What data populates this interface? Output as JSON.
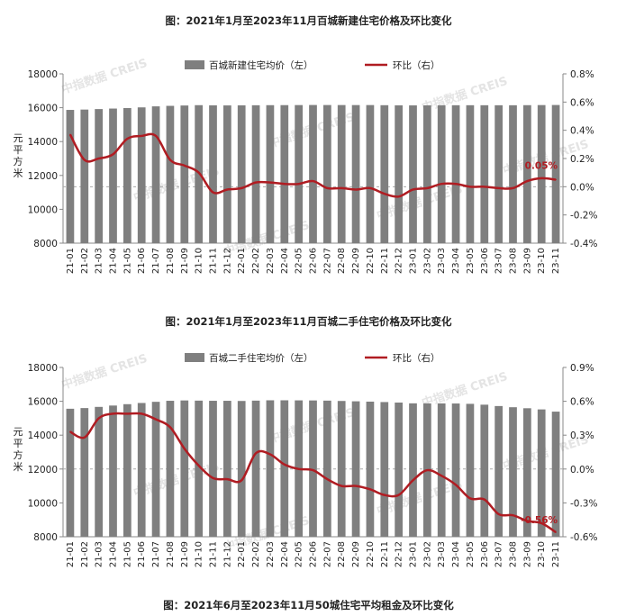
{
  "captions": [
    "图：2021年1月至2023年11月百城新建住宅价格及环比变化",
    "图：2021年1月至2023年11月百城二手住宅价格及环比变化",
    "图：2021年6月至2023年11月50城住宅平均租金及环比变化"
  ],
  "watermark": "中指数据 CREIS",
  "chart_data": [
    {
      "type": "bar",
      "title": "图：2021年1月至2023年11月百城新建住宅价格及环比变化",
      "categories": [
        "21-01",
        "21-02",
        "21-03",
        "21-04",
        "21-05",
        "21-06",
        "21-07",
        "21-08",
        "21-09",
        "21-10",
        "21-11",
        "21-12",
        "22-01",
        "22-02",
        "22-03",
        "22-04",
        "22-05",
        "22-06",
        "22-07",
        "22-08",
        "22-09",
        "22-10",
        "22-11",
        "22-12",
        "23-01",
        "23-02",
        "23-03",
        "23-04",
        "23-05",
        "23-06",
        "23-07",
        "23-08",
        "23-09",
        "23-10",
        "23-11"
      ],
      "ylabel": "元/平方米",
      "ylim": [
        8000,
        18000
      ],
      "yticks": [
        8000,
        10000,
        12000,
        14000,
        16000,
        18000
      ],
      "y2lim": [
        -0.4,
        0.8
      ],
      "y2ticks": [
        "-0.4%",
        "-0.2%",
        "0.0%",
        "0.2%",
        "0.4%",
        "0.6%",
        "0.8%"
      ],
      "series": [
        {
          "name": "百城新建住宅均价（左）",
          "kind": "bar",
          "color": "#7f7f7f",
          "values": [
            15870,
            15890,
            15920,
            15950,
            15980,
            16020,
            16080,
            16110,
            16130,
            16150,
            16140,
            16135,
            16140,
            16145,
            16150,
            16152,
            16155,
            16160,
            16158,
            16157,
            16155,
            16156,
            16148,
            16140,
            16137,
            16140,
            16143,
            16146,
            16147,
            16146,
            16145,
            16145,
            16150,
            16155,
            16160
          ]
        },
        {
          "name": "环比（右）",
          "kind": "line",
          "color": "#b01c22",
          "axis": "right",
          "values": [
            0.37,
            0.19,
            0.2,
            0.23,
            0.34,
            0.36,
            0.36,
            0.19,
            0.15,
            0.1,
            -0.04,
            -0.02,
            -0.01,
            0.03,
            0.03,
            0.02,
            0.02,
            0.04,
            -0.01,
            -0.01,
            -0.02,
            -0.01,
            -0.05,
            -0.07,
            -0.02,
            -0.01,
            0.02,
            0.02,
            0.0,
            0.0,
            -0.01,
            -0.01,
            0.04,
            0.06,
            0.05
          ]
        }
      ],
      "annotation": "0.05%",
      "legend": "top-center",
      "grid": false
    },
    {
      "type": "bar",
      "title": "图：2021年1月至2023年11月百城二手住宅价格及环比变化",
      "categories": [
        "21-01",
        "21-02",
        "21-03",
        "21-04",
        "21-05",
        "21-06",
        "21-07",
        "21-08",
        "21-09",
        "21-10",
        "21-11",
        "21-12",
        "22-01",
        "22-02",
        "22-03",
        "22-04",
        "22-05",
        "22-06",
        "22-07",
        "22-08",
        "22-09",
        "22-10",
        "22-11",
        "22-12",
        "23-01",
        "23-02",
        "23-03",
        "23-04",
        "23-05",
        "23-06",
        "23-07",
        "23-08",
        "23-09",
        "23-10",
        "23-11"
      ],
      "ylabel": "元/平方米",
      "ylim": [
        8000,
        18000
      ],
      "yticks": [
        8000,
        10000,
        12000,
        14000,
        16000,
        18000
      ],
      "y2lim": [
        -0.6,
        0.9
      ],
      "y2ticks": [
        "-0.6%",
        "-0.3%",
        "0.0%",
        "0.3%",
        "0.6%",
        "0.9%"
      ],
      "series": [
        {
          "name": "百城二手住宅均价（左）",
          "kind": "bar",
          "color": "#7f7f7f",
          "values": [
            15560,
            15600,
            15670,
            15750,
            15830,
            15900,
            15970,
            16030,
            16050,
            16040,
            16030,
            16030,
            16020,
            16040,
            16060,
            16060,
            16055,
            16050,
            16040,
            16020,
            16000,
            15980,
            15955,
            15925,
            15880,
            15875,
            15875,
            15870,
            15850,
            15800,
            15720,
            15650,
            15590,
            15520,
            15390
          ]
        },
        {
          "name": "环比（右）",
          "kind": "line",
          "color": "#b01c22",
          "axis": "right",
          "values": [
            0.33,
            0.28,
            0.45,
            0.49,
            0.49,
            0.49,
            0.44,
            0.37,
            0.18,
            0.03,
            -0.08,
            -0.09,
            -0.1,
            0.14,
            0.13,
            0.04,
            0.0,
            -0.01,
            -0.09,
            -0.15,
            -0.15,
            -0.18,
            -0.23,
            -0.23,
            -0.1,
            -0.01,
            -0.06,
            -0.14,
            -0.26,
            -0.27,
            -0.4,
            -0.41,
            -0.46,
            -0.48,
            -0.56
          ]
        }
      ],
      "annotation": "-0.56%",
      "legend": "top-center",
      "grid": false
    }
  ]
}
